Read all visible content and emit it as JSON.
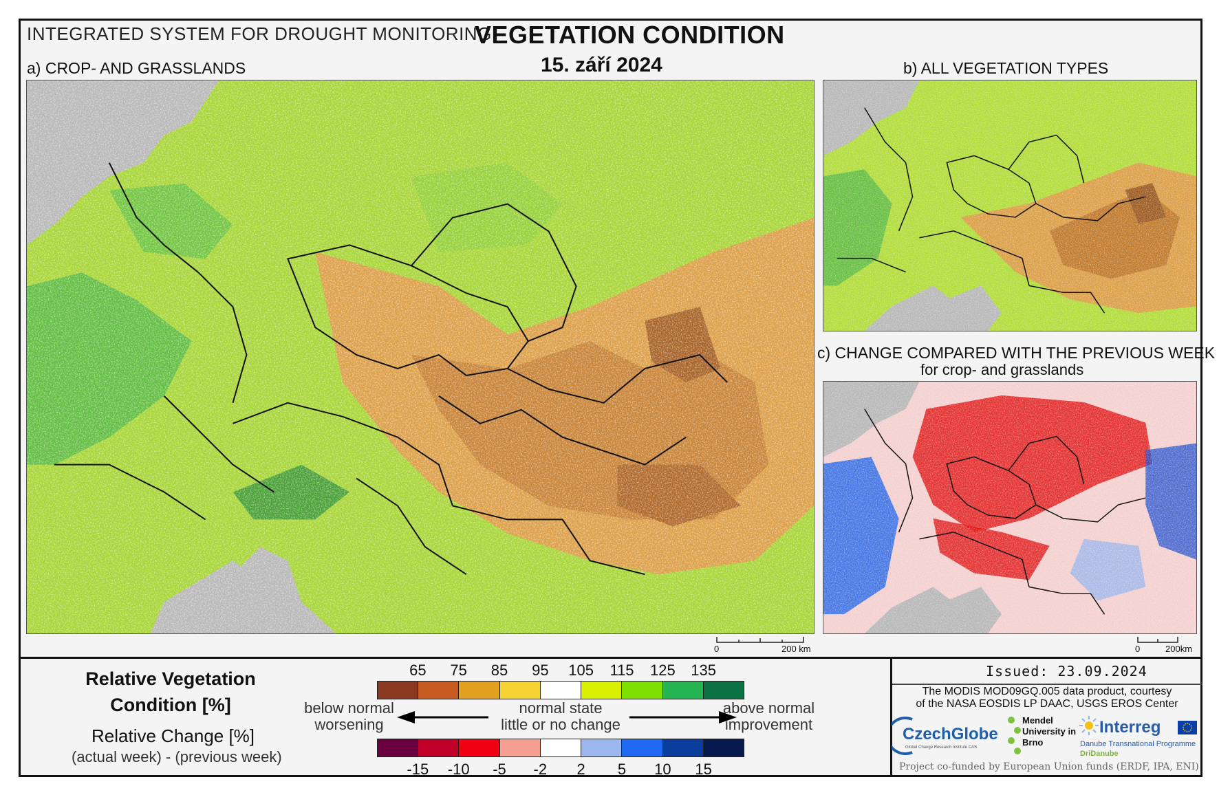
{
  "header": {
    "system": "INTEGRATED SYSTEM FOR DROUGHT MONITORING",
    "title": "VEGETATION CONDITION",
    "date": "15. září 2024"
  },
  "panels": {
    "a_label": "a) CROP- AND GRASSLANDS",
    "b_label": "b) ALL VEGETATION TYPES",
    "c_label": "c) CHANGE COMPARED WITH THE PREVIOUS WEEK",
    "c_sublabel": "for crop- and grasslands"
  },
  "scalebar": {
    "a_zero": "0",
    "a_max": "200 km",
    "c_zero": "0",
    "c_max": "200km"
  },
  "legend": {
    "rvc_title": "Relative Vegetation Condition [%]",
    "rc_title": "Relative Change [%]",
    "rc_formula": "(actual week) - (previous week)",
    "left_top": "below normal",
    "left_bottom": "worsening",
    "mid_top": "normal state",
    "mid_bottom": "little or no change",
    "right_top": "above normal",
    "right_bottom": "improvement",
    "rvc_ticks": [
      "65",
      "75",
      "85",
      "95",
      "105",
      "115",
      "125",
      "135"
    ],
    "rvc_colors": [
      "#8b3a22",
      "#c65a21",
      "#e2a11e",
      "#f7d233",
      "#ffffff",
      "#d9f000",
      "#7fe000",
      "#25b552",
      "#0a7242"
    ],
    "rc_ticks": [
      "-15",
      "-10",
      "-5",
      "-2",
      "2",
      "5",
      "10",
      "15"
    ],
    "rc_colors": [
      "#6a0040",
      "#c00028",
      "#f00010",
      "#f7a092",
      "#ffffff",
      "#9cb7f0",
      "#1f68f0",
      "#0a3c9c",
      "#061a4f"
    ]
  },
  "footer": {
    "issued": "Issued: 23.09.2024",
    "credit_line1": "The MODIS MOD09GQ.005 data product, courtesy",
    "credit_line2": "of the NASA EOSDIS LP DAAC, USGS EROS Center",
    "czechglobe": "CzechGlobe",
    "czechglobe_sub": "Global Change Research Institute CAS",
    "mendel": "Mendel University in Brno",
    "interreg": "Interreg",
    "interreg_sub1": "Danube Transnational Programme",
    "interreg_sub2": "DriDanube",
    "cofunded": "Project co-funded by European Union funds (ERDF, IPA, ENI)"
  }
}
